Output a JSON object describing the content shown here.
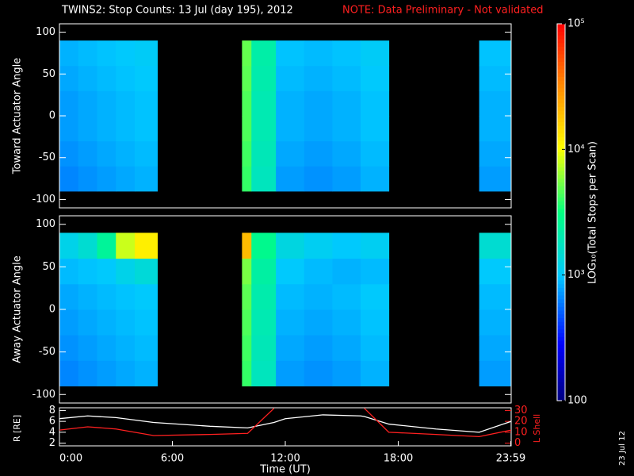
{
  "chart_data": [
    {
      "type": "heatmap",
      "title": "TWINS2: Stop Counts: 13 Jul (day 195), 2012",
      "note": "NOTE: Data Preliminary - Not validated",
      "ylabel": "Toward Actuator Angle",
      "ylim": [
        -110,
        110
      ],
      "yticks": [
        -100,
        -50,
        0,
        50,
        100
      ],
      "xlim": [
        0,
        24
      ],
      "x": [
        0,
        1,
        2,
        3,
        4,
        5.2,
        9.7,
        10.2,
        11.5,
        13,
        14.5,
        16,
        17.5,
        22.3,
        24
      ],
      "y": [
        -90,
        -60,
        -30,
        0,
        30,
        60,
        90
      ],
      "log_color": true,
      "zlim": [
        100,
        100000
      ],
      "zticks": [
        {
          "value": 100,
          "label": "100"
        },
        {
          "value": 1000,
          "label": "10³"
        },
        {
          "value": 10000,
          "label": "10⁴"
        },
        {
          "value": 100000,
          "label": "10⁵"
        }
      ],
      "zlabel": "LOG₁₀(Total Stops per Scan)",
      "z": [
        [
          650,
          700,
          750,
          800,
          850,
          null,
          4000,
          1800,
          750,
          700,
          750,
          850,
          null,
          750
        ],
        [
          700,
          750,
          800,
          850,
          900,
          null,
          4200,
          1900,
          800,
          750,
          800,
          900,
          null,
          800
        ],
        [
          750,
          800,
          850,
          900,
          950,
          null,
          4500,
          2000,
          850,
          800,
          850,
          950,
          null,
          850
        ],
        [
          750,
          800,
          850,
          900,
          950,
          null,
          4500,
          2000,
          850,
          800,
          850,
          950,
          null,
          850
        ],
        [
          800,
          850,
          900,
          950,
          1000,
          null,
          4800,
          2100,
          900,
          850,
          900,
          1000,
          null,
          900
        ],
        [
          850,
          900,
          950,
          1000,
          1050,
          null,
          5000,
          2200,
          950,
          900,
          950,
          1050,
          null,
          950
        ]
      ]
    },
    {
      "type": "heatmap",
      "ylabel": "Away Actuator Angle",
      "ylim": [
        -110,
        110
      ],
      "yticks": [
        -100,
        -50,
        0,
        50,
        100
      ],
      "xlim": [
        0,
        24
      ],
      "x": [
        0,
        1,
        2,
        3,
        4,
        5.2,
        9.7,
        10.2,
        11.5,
        13,
        14.5,
        16,
        17.5,
        22.3,
        24
      ],
      "y": [
        -90,
        -60,
        -30,
        0,
        30,
        60,
        90
      ],
      "z": [
        [
          650,
          700,
          750,
          800,
          850,
          null,
          4000,
          1800,
          750,
          700,
          750,
          850,
          null,
          750
        ],
        [
          700,
          750,
          800,
          850,
          900,
          null,
          4200,
          1900,
          800,
          750,
          800,
          900,
          null,
          800
        ],
        [
          750,
          800,
          850,
          900,
          950,
          null,
          4500,
          2000,
          850,
          800,
          850,
          950,
          null,
          850
        ],
        [
          800,
          850,
          900,
          950,
          1000,
          null,
          4800,
          2100,
          900,
          850,
          900,
          1000,
          null,
          900
        ],
        [
          900,
          950,
          1000,
          1200,
          1400,
          null,
          5500,
          2300,
          1000,
          900,
          850,
          900,
          null,
          1000
        ],
        [
          1200,
          1500,
          2500,
          8000,
          12000,
          null,
          20000,
          2800,
          1300,
          1100,
          1000,
          1100,
          null,
          1500
        ]
      ]
    },
    {
      "type": "line",
      "ylabel": "R [RE]",
      "y2label": "L Shell",
      "xlabel": "Time (UT)",
      "side_label": "23 Jul 12",
      "xlim": [
        0,
        24
      ],
      "ylim": [
        1.5,
        8.5
      ],
      "yticks": [
        2,
        4,
        6,
        8
      ],
      "y2lim": [
        -2.5,
        32.5
      ],
      "y2ticks": [
        0,
        10,
        20,
        30
      ],
      "xticks": [
        {
          "value": 0,
          "label": "0:00"
        },
        {
          "value": 6,
          "label": "6:00"
        },
        {
          "value": 12,
          "label": "12:00"
        },
        {
          "value": 18,
          "label": "18:00"
        },
        {
          "value": 23.98,
          "label": "23:59"
        }
      ],
      "x": [
        0,
        1.5,
        3,
        5,
        8,
        10,
        11.4,
        12,
        14,
        16,
        16.2,
        17.5,
        20,
        22.3,
        24
      ],
      "series": [
        {
          "name": "R",
          "color": "#ffffff",
          "values": [
            6.5,
            7,
            6.7,
            5.8,
            5.1,
            4.8,
            5.8,
            6.5,
            7.2,
            7,
            6.9,
            5.5,
            4.6,
            4,
            6
          ]
        },
        {
          "name": "L",
          "color": "#ff2020",
          "axis": "y2",
          "values": [
            12,
            15,
            13,
            7,
            8,
            9,
            32,
            null,
            null,
            null,
            32,
            10,
            8,
            6,
            12
          ]
        }
      ]
    }
  ]
}
